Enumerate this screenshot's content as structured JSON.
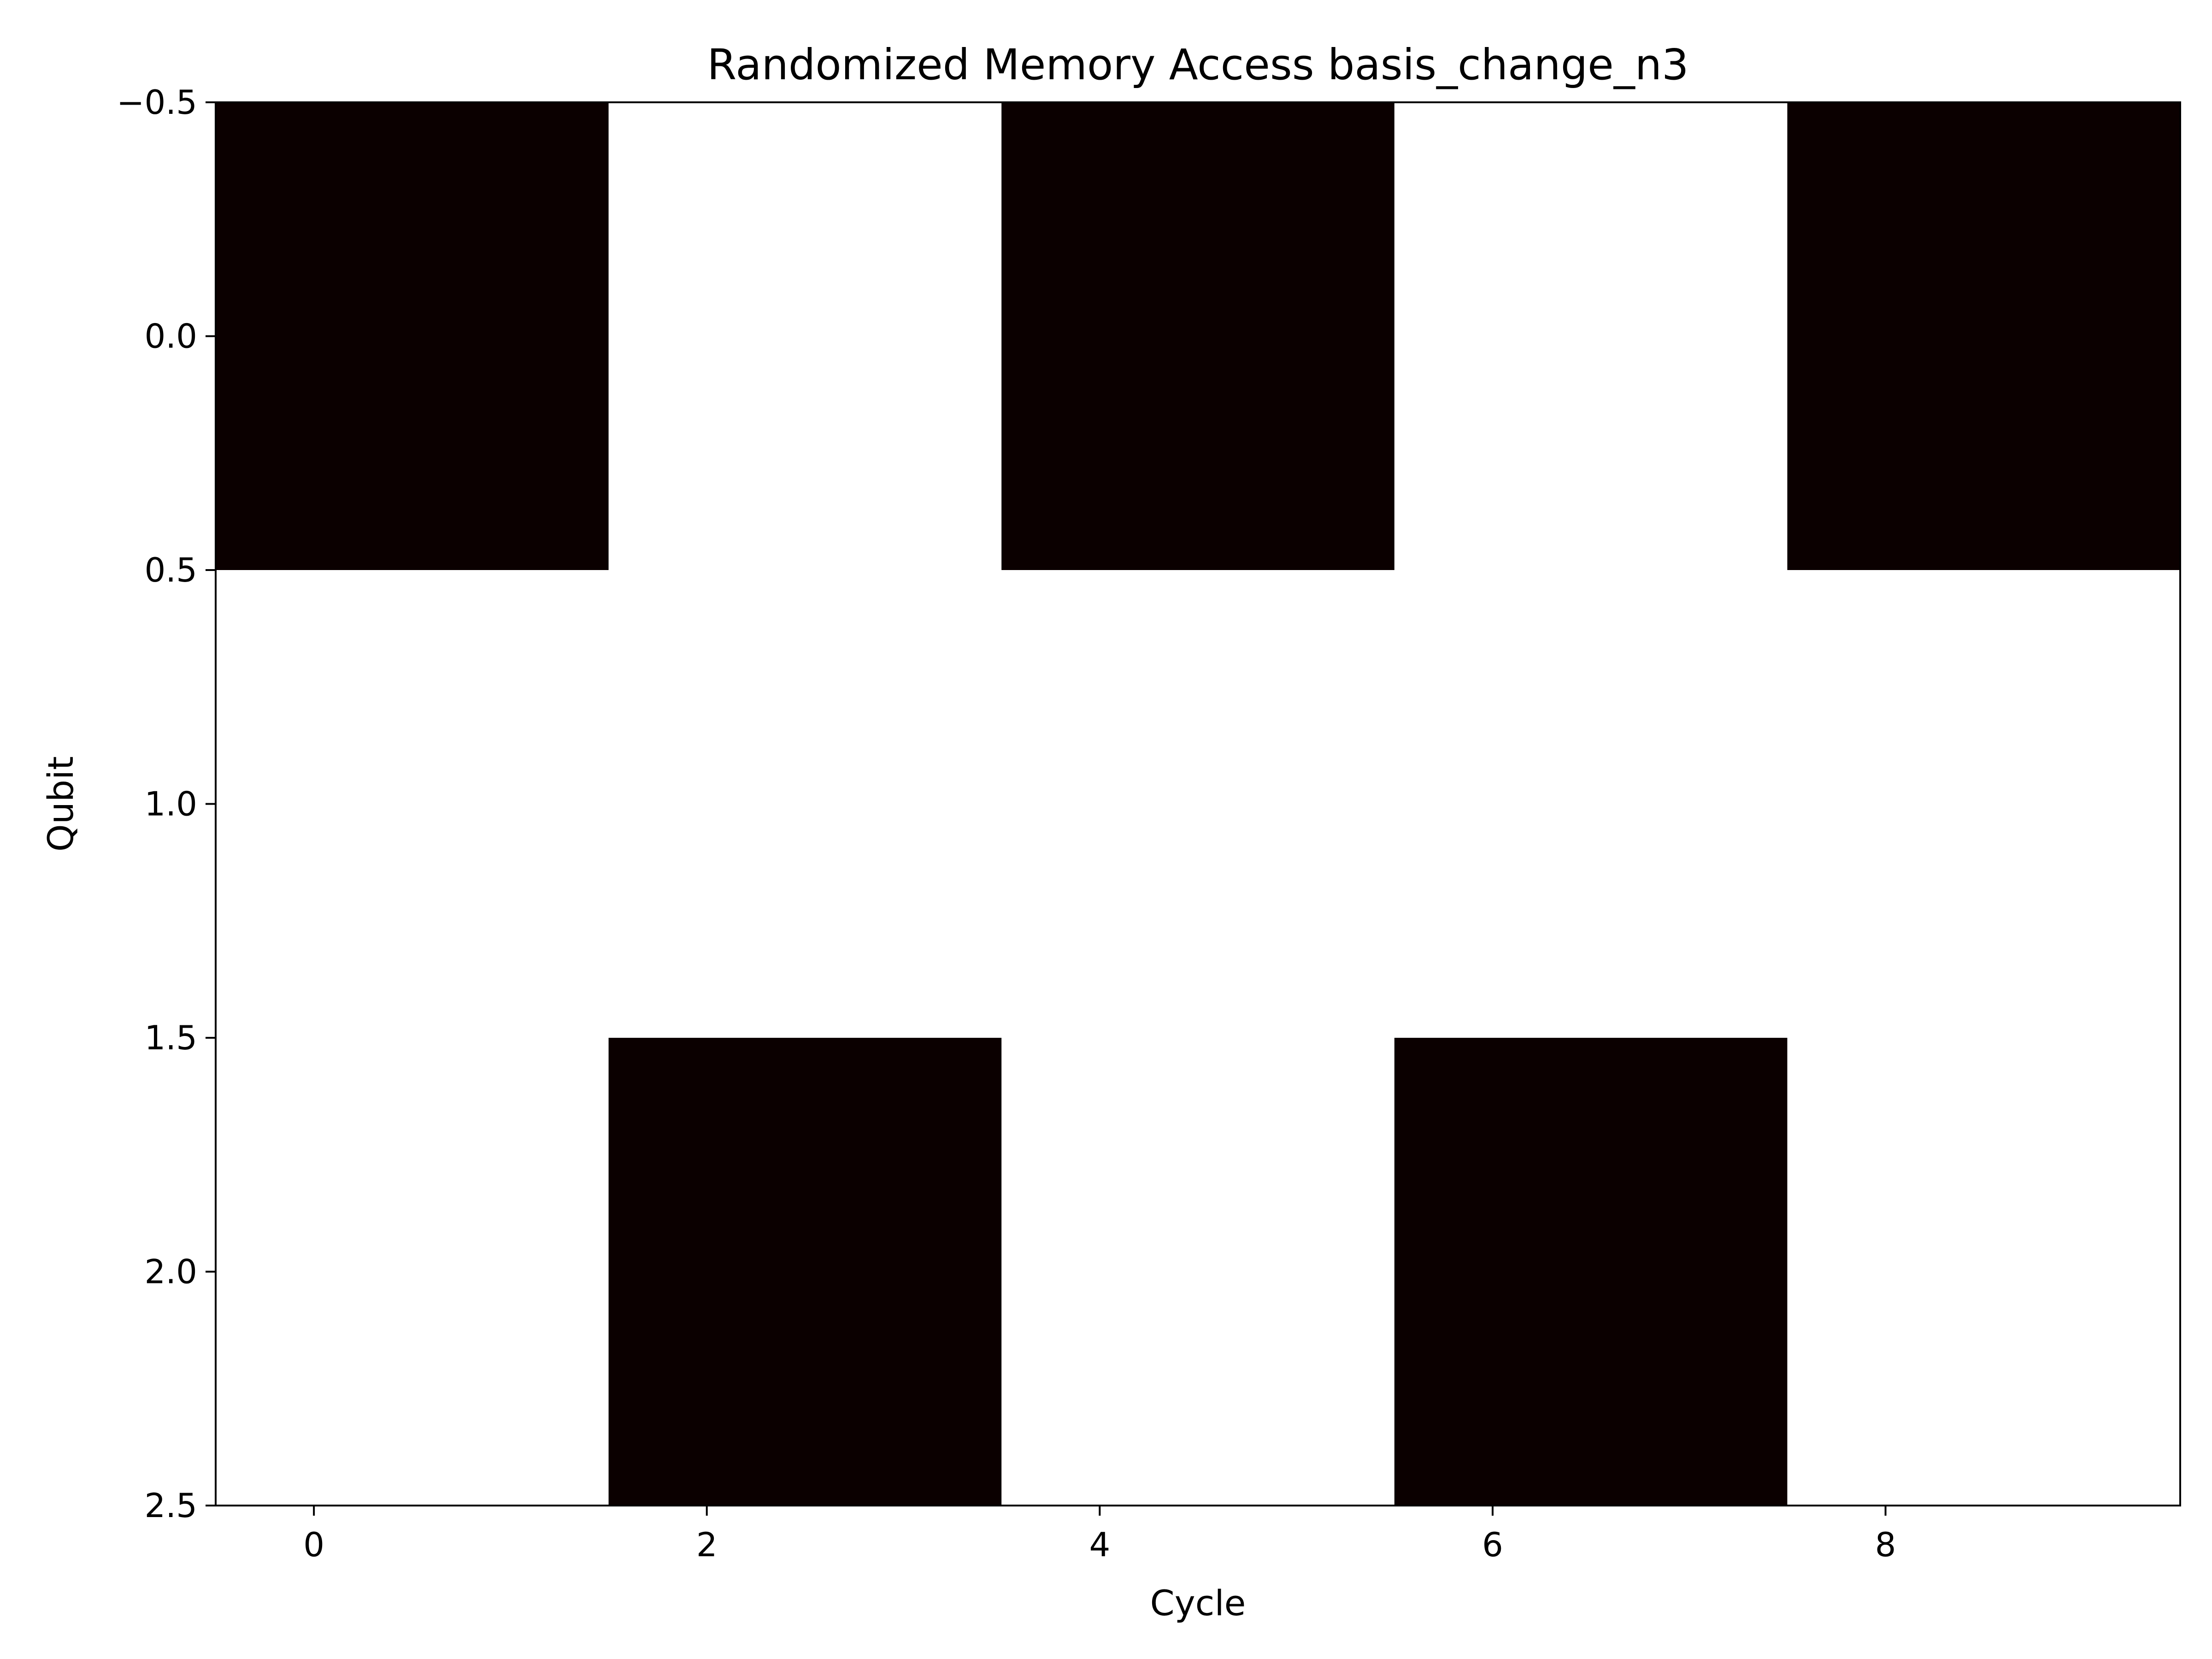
{
  "chart_data": {
    "type": "heatmap",
    "title": "Randomized Memory Access basis_change_n3",
    "xlabel": "Cycle",
    "ylabel": "Qubit",
    "xlim": [
      -0.5,
      9.5
    ],
    "ylim": [
      2.5,
      -0.5
    ],
    "x_ticks": [
      0,
      2,
      4,
      6,
      8
    ],
    "x_tick_labels": [
      "0",
      "2",
      "4",
      "6",
      "8"
    ],
    "y_ticks": [
      -0.5,
      0.0,
      0.5,
      1.0,
      1.5,
      2.0,
      2.5
    ],
    "y_tick_labels": [
      "−0.5",
      "0.0",
      "0.5",
      "1.0",
      "1.5",
      "2.0",
      "2.5"
    ],
    "rows": [
      "0",
      "1",
      "2"
    ],
    "columns": [
      0,
      1,
      2,
      3,
      4,
      5,
      6,
      7,
      8,
      9
    ],
    "values": [
      [
        1,
        1,
        0,
        0,
        1,
        1,
        0,
        0,
        1,
        1
      ],
      [
        0,
        0,
        0,
        0,
        0,
        0,
        0,
        0,
        0,
        0
      ],
      [
        0,
        0,
        1,
        1,
        0,
        0,
        1,
        1,
        0,
        0
      ]
    ],
    "colormap": {
      "0": "#ffffff",
      "1": "#0b0000"
    },
    "grid": false,
    "legend": "none"
  }
}
